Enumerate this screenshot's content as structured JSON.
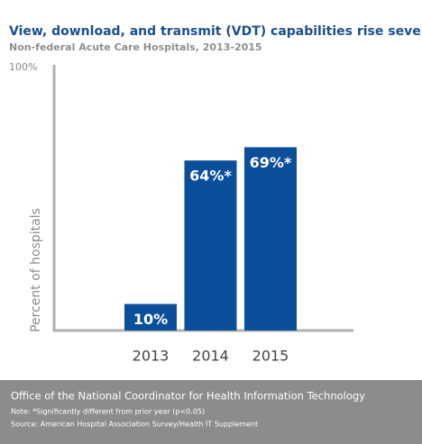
{
  "chart_data": {
    "type": "bar",
    "title": "View, download, and transmit (VDT) capabilities rise seven-fold",
    "subtitle": "Non-federal Acute Care Hospitals, 2013-2015",
    "y_label": "Percent of hospitals",
    "categories": [
      "2013",
      "2014",
      "2015"
    ],
    "values": [
      10,
      64,
      69
    ],
    "value_labels": [
      "10%",
      "64%*",
      "69%*"
    ],
    "color": "#0b4f9b",
    "ylim": [
      0,
      100
    ],
    "yticks": [
      {
        "value": 100,
        "label": "100%"
      }
    ],
    "grid": false,
    "footer_title": "Office of the National Coordinator for Health Information Technology",
    "note": "Note: *Significantly different from prior year (p<0.05)",
    "source": "Source: American Hospital Association Survey/Health IT Supplement"
  }
}
